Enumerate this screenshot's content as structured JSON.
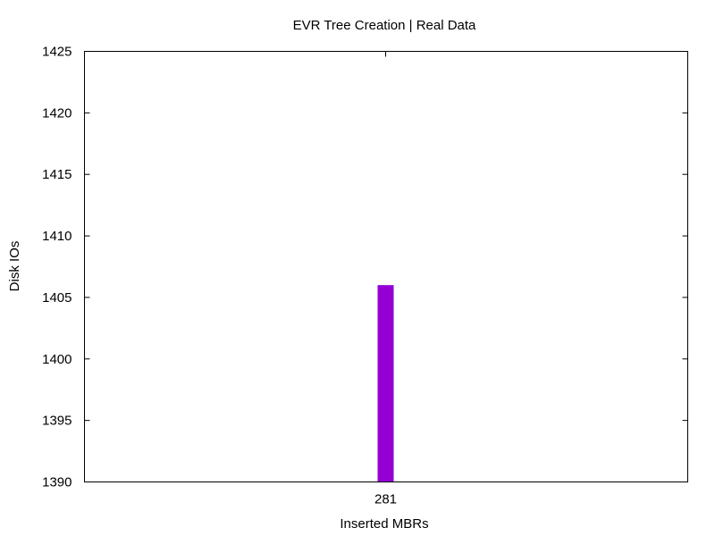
{
  "chart_data": {
    "type": "bar",
    "title": "EVR Tree Creation | Real Data",
    "xlabel": "Inserted MBRs",
    "ylabel": "Disk IOs",
    "categories": [
      "281"
    ],
    "series": [
      {
        "values": [
          1406
        ]
      }
    ],
    "ylim": [
      1390,
      1425
    ],
    "yticks": [
      1390,
      1395,
      1400,
      1405,
      1410,
      1415,
      1420,
      1425
    ],
    "grid": false,
    "colors": {
      "bar": "#9400d3",
      "axis": "#000000"
    }
  }
}
